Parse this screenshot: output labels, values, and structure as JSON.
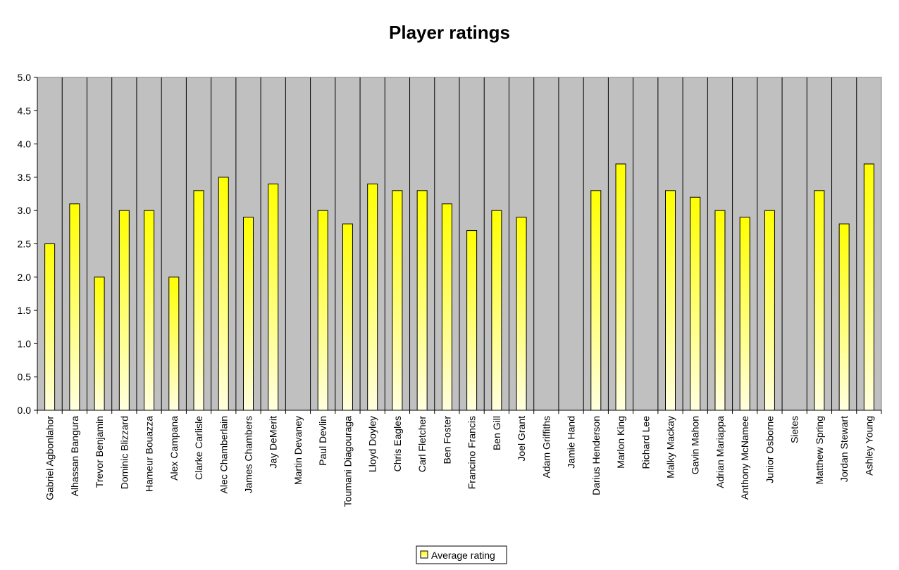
{
  "chart_data": {
    "type": "bar",
    "title": "Player ratings",
    "xlabel": "",
    "ylabel": "",
    "ylim": [
      0,
      5
    ],
    "yticks": [
      "0.0",
      "0.5",
      "1.0",
      "1.5",
      "2.0",
      "2.5",
      "3.0",
      "3.5",
      "4.0",
      "4.5",
      "5.0"
    ],
    "grid": "vertical category separators",
    "legend_position": "bottom",
    "colors": {
      "plot_background": "#c0c0c0",
      "bar_top": "#ffff00",
      "bar_bottom": "#ffffe0",
      "bar_edge": "#000000"
    },
    "categories": [
      "Gabriel Agbonlahor",
      "Alhassan Bangura",
      "Trevor Benjamin",
      "Dominic Blizzard",
      "Hameur Bouazza",
      "Alex Campana",
      "Clarke Carlisle",
      "Alec Chamberlain",
      "James Chambers",
      "Jay DeMerit",
      "Martin Devaney",
      "Paul Devlin",
      "Toumani Diagouraga",
      "Lloyd Doyley",
      "Chris Eagles",
      "Carl Fletcher",
      "Ben Foster",
      "Francino Francis",
      "Ben Gill",
      "Joel Grant",
      "Adam Griffiths",
      "Jamie Hand",
      "Darius Henderson",
      "Marlon King",
      "Richard Lee",
      "Malky Mackay",
      "Gavin Mahon",
      "Adrian Mariappa",
      "Anthony McNamee",
      "Junior Osborne",
      "Sietes",
      "Matthew Spring",
      "Jordan Stewart",
      "Ashley Young"
    ],
    "series": [
      {
        "name": "Average rating",
        "values": [
          2.5,
          3.1,
          2.0,
          3.0,
          3.0,
          2.0,
          3.3,
          3.5,
          2.9,
          3.4,
          null,
          3.0,
          2.8,
          3.4,
          3.3,
          3.3,
          3.1,
          2.7,
          3.0,
          2.9,
          null,
          null,
          3.3,
          3.7,
          null,
          3.3,
          3.2,
          3.0,
          2.9,
          3.0,
          null,
          3.3,
          2.8,
          3.7
        ]
      }
    ]
  }
}
